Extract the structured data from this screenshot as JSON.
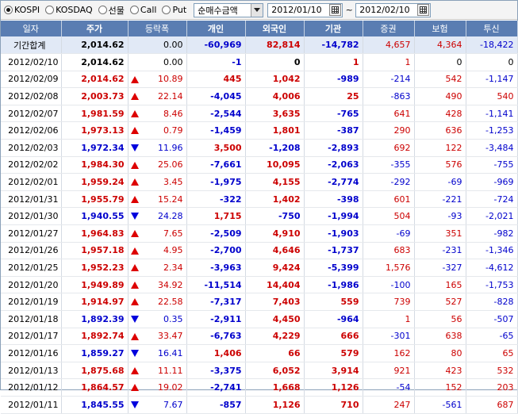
{
  "toolbar": {
    "markets": [
      {
        "label": "KOSPI",
        "selected": true
      },
      {
        "label": "KOSDAQ",
        "selected": false
      },
      {
        "label": "선물",
        "selected": false
      },
      {
        "label": "Call",
        "selected": false
      },
      {
        "label": "Put",
        "selected": false
      }
    ],
    "metric_select": "순매수금액",
    "date_from": "2012/01/10",
    "date_sep": "~",
    "date_to": "2012/02/10"
  },
  "table": {
    "headers": [
      "일자",
      "주가",
      "등락폭",
      "개인",
      "외국인",
      "기관",
      "증권",
      "보험",
      "투신"
    ],
    "total": {
      "date": "기간합계",
      "price": "2,014.62",
      "change": "0.00",
      "individual": "-60,969",
      "foreign": "82,814",
      "institution": "-14,782",
      "securities": "4,657",
      "insurance": "4,364",
      "trust": "-18,422"
    },
    "rows": [
      {
        "date": "2012/02/10",
        "price": "2,014.62",
        "change": "0.00",
        "dir": "none",
        "individual": "-1",
        "foreign": "0",
        "institution": "1",
        "securities": "1",
        "insurance": "0",
        "trust": "0"
      },
      {
        "date": "2012/02/09",
        "price": "2,014.62",
        "change": "10.89",
        "dir": "up",
        "individual": "445",
        "foreign": "1,042",
        "institution": "-989",
        "securities": "-214",
        "insurance": "542",
        "trust": "-1,147"
      },
      {
        "date": "2012/02/08",
        "price": "2,003.73",
        "change": "22.14",
        "dir": "up",
        "individual": "-4,045",
        "foreign": "4,006",
        "institution": "25",
        "securities": "-863",
        "insurance": "490",
        "trust": "540"
      },
      {
        "date": "2012/02/07",
        "price": "1,981.59",
        "change": "8.46",
        "dir": "up",
        "individual": "-2,544",
        "foreign": "3,635",
        "institution": "-765",
        "securities": "641",
        "insurance": "428",
        "trust": "-1,141"
      },
      {
        "date": "2012/02/06",
        "price": "1,973.13",
        "change": "0.79",
        "dir": "up",
        "individual": "-1,459",
        "foreign": "1,801",
        "institution": "-387",
        "securities": "290",
        "insurance": "636",
        "trust": "-1,253"
      },
      {
        "date": "2012/02/03",
        "price": "1,972.34",
        "change": "11.96",
        "dir": "down",
        "individual": "3,500",
        "foreign": "-1,208",
        "institution": "-2,893",
        "securities": "692",
        "insurance": "122",
        "trust": "-3,484"
      },
      {
        "date": "2012/02/02",
        "price": "1,984.30",
        "change": "25.06",
        "dir": "up",
        "individual": "-7,661",
        "foreign": "10,095",
        "institution": "-2,063",
        "securities": "-355",
        "insurance": "576",
        "trust": "-755"
      },
      {
        "date": "2012/02/01",
        "price": "1,959.24",
        "change": "3.45",
        "dir": "up",
        "individual": "-1,975",
        "foreign": "4,155",
        "institution": "-2,774",
        "securities": "-292",
        "insurance": "-69",
        "trust": "-969"
      },
      {
        "date": "2012/01/31",
        "price": "1,955.79",
        "change": "15.24",
        "dir": "up",
        "individual": "-322",
        "foreign": "1,402",
        "institution": "-398",
        "securities": "601",
        "insurance": "-221",
        "trust": "-724"
      },
      {
        "date": "2012/01/30",
        "price": "1,940.55",
        "change": "24.28",
        "dir": "down",
        "individual": "1,715",
        "foreign": "-750",
        "institution": "-1,994",
        "securities": "504",
        "insurance": "-93",
        "trust": "-2,021"
      },
      {
        "date": "2012/01/27",
        "price": "1,964.83",
        "change": "7.65",
        "dir": "up",
        "individual": "-2,509",
        "foreign": "4,910",
        "institution": "-1,903",
        "securities": "-69",
        "insurance": "351",
        "trust": "-982"
      },
      {
        "date": "2012/01/26",
        "price": "1,957.18",
        "change": "4.95",
        "dir": "up",
        "individual": "-2,700",
        "foreign": "4,646",
        "institution": "-1,737",
        "securities": "683",
        "insurance": "-231",
        "trust": "-1,346"
      },
      {
        "date": "2012/01/25",
        "price": "1,952.23",
        "change": "2.34",
        "dir": "up",
        "individual": "-3,963",
        "foreign": "9,424",
        "institution": "-5,399",
        "securities": "1,576",
        "insurance": "-327",
        "trust": "-4,612"
      },
      {
        "date": "2012/01/20",
        "price": "1,949.89",
        "change": "34.92",
        "dir": "up",
        "individual": "-11,514",
        "foreign": "14,404",
        "institution": "-1,986",
        "securities": "-100",
        "insurance": "165",
        "trust": "-1,753"
      },
      {
        "date": "2012/01/19",
        "price": "1,914.97",
        "change": "22.58",
        "dir": "up",
        "individual": "-7,317",
        "foreign": "7,403",
        "institution": "559",
        "securities": "739",
        "insurance": "527",
        "trust": "-828"
      },
      {
        "date": "2012/01/18",
        "price": "1,892.39",
        "change": "0.35",
        "dir": "down",
        "individual": "-2,911",
        "foreign": "4,450",
        "institution": "-964",
        "securities": "1",
        "insurance": "56",
        "trust": "-507"
      },
      {
        "date": "2012/01/17",
        "price": "1,892.74",
        "change": "33.47",
        "dir": "up",
        "individual": "-6,763",
        "foreign": "4,229",
        "institution": "666",
        "securities": "-301",
        "insurance": "638",
        "trust": "-65"
      },
      {
        "date": "2012/01/16",
        "price": "1,859.27",
        "change": "16.41",
        "dir": "down",
        "individual": "1,406",
        "foreign": "66",
        "institution": "579",
        "securities": "162",
        "insurance": "80",
        "trust": "65"
      },
      {
        "date": "2012/01/13",
        "price": "1,875.68",
        "change": "11.11",
        "dir": "up",
        "individual": "-3,375",
        "foreign": "6,052",
        "institution": "3,914",
        "securities": "921",
        "insurance": "423",
        "trust": "532"
      },
      {
        "date": "2012/01/12",
        "price": "1,864.57",
        "change": "19.02",
        "dir": "up",
        "individual": "-2,741",
        "foreign": "1,668",
        "institution": "1,126",
        "securities": "-54",
        "insurance": "152",
        "trust": "203"
      },
      {
        "date": "2012/01/11",
        "price": "1,845.55",
        "change": "7.67",
        "dir": "down",
        "individual": "-857",
        "foreign": "1,126",
        "institution": "710",
        "securities": "247",
        "insurance": "-561",
        "trust": "687"
      }
    ]
  }
}
